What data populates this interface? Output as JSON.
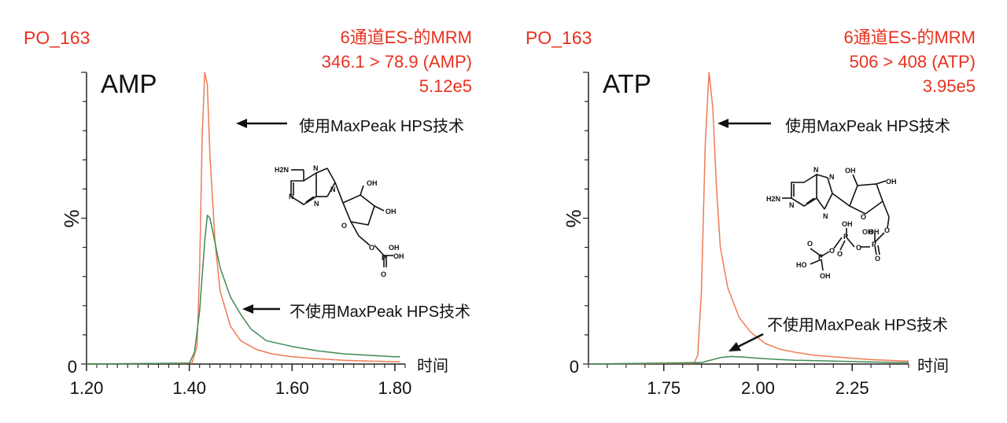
{
  "colors": {
    "with_maxpeak": "#f07a55",
    "without_maxpeak": "#3f8a55",
    "header_text": "#e8321f",
    "axis": "#222222"
  },
  "chart_data": [
    {
      "type": "line",
      "panel_label": "AMP",
      "sample": "PO_163",
      "header": [
        "6通道ES-的MRM",
        "346.1 > 78.9 (AMP)",
        "5.12e5"
      ],
      "ylabel": "%",
      "xlabel": "时间",
      "y_tick_labels": [
        "0"
      ],
      "xlim": [
        1.2,
        1.82
      ],
      "ylim": [
        0,
        100
      ],
      "x_ticks": [
        1.2,
        1.4,
        1.6,
        1.8
      ],
      "x_tick_labels": [
        "1.20",
        "1.40",
        "1.60",
        "1.80"
      ],
      "series": [
        {
          "key": "with_maxpeak",
          "name": "使用MaxPeak HPS技术",
          "x": [
            1.2,
            1.405,
            1.415,
            1.42,
            1.425,
            1.43,
            1.435,
            1.44,
            1.45,
            1.46,
            1.48,
            1.5,
            1.53,
            1.56,
            1.6,
            1.65,
            1.7,
            1.75,
            1.8,
            1.81
          ],
          "y": [
            0,
            0.3,
            6,
            32,
            78,
            100,
            96,
            72,
            42,
            25,
            13,
            8,
            5,
            3.5,
            2.5,
            1.8,
            1.3,
            1,
            0.8,
            0.8
          ]
        },
        {
          "key": "without_maxpeak",
          "name": "不使用MaxPeak HPS技术",
          "x": [
            1.2,
            1.4,
            1.41,
            1.42,
            1.43,
            1.435,
            1.44,
            1.445,
            1.46,
            1.48,
            1.5,
            1.52,
            1.55,
            1.6,
            1.65,
            1.7,
            1.75,
            1.8,
            1.81
          ],
          "y": [
            0,
            0.3,
            4,
            18,
            42,
            51,
            50,
            46,
            33,
            23,
            17,
            12,
            8,
            6,
            4.5,
            3.5,
            3,
            2.5,
            2.5
          ]
        }
      ],
      "annotations": [
        "使用MaxPeak HPS技术",
        "不使用MaxPeak HPS技术"
      ]
    },
    {
      "type": "line",
      "panel_label": "ATP",
      "sample": "PO_163",
      "header": [
        "6通道ES-的MRM",
        "506 > 408 (ATP)",
        "3.95e5"
      ],
      "ylabel": "%",
      "xlabel": "时间",
      "y_tick_labels": [
        "0"
      ],
      "xlim": [
        1.55,
        2.4
      ],
      "ylim": [
        0,
        100
      ],
      "x_ticks": [
        1.75,
        2.0,
        2.25
      ],
      "x_tick_labels": [
        "1.75",
        "2.00",
        "2.25"
      ],
      "series": [
        {
          "key": "with_maxpeak",
          "name": "使用MaxPeak HPS技术",
          "x": [
            1.55,
            1.83,
            1.84,
            1.85,
            1.86,
            1.87,
            1.88,
            1.89,
            1.9,
            1.92,
            1.95,
            1.98,
            2.02,
            2.06,
            2.1,
            2.15,
            2.2,
            2.3,
            2.4
          ],
          "y": [
            0,
            0.3,
            3,
            25,
            75,
            100,
            88,
            60,
            40,
            26,
            16,
            11,
            7,
            5,
            4,
            3,
            2.5,
            1.5,
            1
          ]
        },
        {
          "key": "without_maxpeak",
          "name": "不使用MaxPeak HPS技术",
          "x": [
            1.55,
            1.85,
            1.88,
            1.9,
            1.93,
            1.96,
            2.0,
            2.05,
            2.1,
            2.2,
            2.3,
            2.4
          ],
          "y": [
            0,
            0.5,
            1.5,
            2.2,
            2.6,
            2.4,
            2,
            1.6,
            1.3,
            1,
            0.7,
            0.5
          ]
        }
      ],
      "annotations": [
        "使用MaxPeak HPS技术",
        "不使用MaxPeak HPS技术"
      ]
    }
  ],
  "molecules": {
    "amp": {
      "labels": [
        "H2N",
        "N",
        "N",
        "N",
        "N",
        "O",
        "OH",
        "OH",
        "O",
        "P",
        "OH",
        "OH",
        "O"
      ]
    },
    "atp": {
      "labels": [
        "H2N",
        "N",
        "N",
        "N",
        "N",
        "O",
        "OH",
        "OH",
        "OH",
        "P",
        "O",
        "OH",
        "P",
        "O",
        "OH",
        "P",
        "O",
        "O",
        "O",
        "O",
        "HO",
        "OH"
      ]
    }
  }
}
